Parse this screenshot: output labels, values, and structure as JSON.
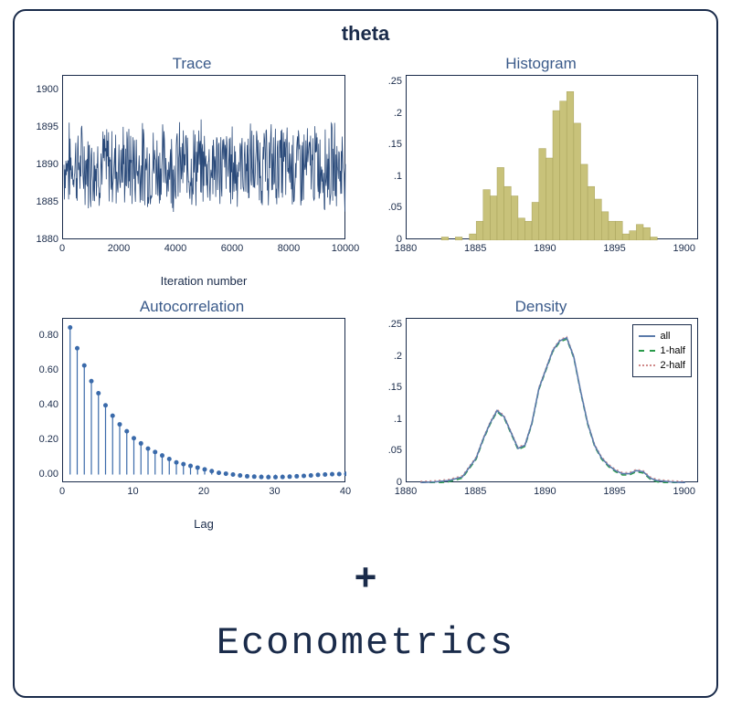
{
  "main_title": "theta",
  "plus_symbol": "+",
  "bottom_label": "Econometrics",
  "frame": {
    "border_color": "#1a2b4a",
    "border_radius": 14
  },
  "colors": {
    "text": "#1a2b4a",
    "subtitle": "#3a5a8a",
    "trace_line": "#2a4a7a",
    "hist_bar": "#c8c27a",
    "hist_bar_border": "#a8a25a",
    "acf_color": "#3a6aaa",
    "density_all": "#5a7aaa",
    "density_half1": "#2a9a4a",
    "density_half2": "#d08a8a"
  },
  "trace": {
    "title": "Trace",
    "xlabel": "Iteration number",
    "xlim": [
      0,
      10000
    ],
    "ylim": [
      1880,
      1902
    ],
    "xticks": [
      0,
      2000,
      4000,
      6000,
      8000,
      10000
    ],
    "yticks": [
      1880,
      1885,
      1890,
      1895,
      1900
    ],
    "mean": 1890,
    "noise_amp": 5
  },
  "histogram": {
    "title": "Histogram",
    "xlim": [
      1880,
      1901
    ],
    "ylim": [
      0,
      0.26
    ],
    "xticks": [
      1880,
      1885,
      1890,
      1895,
      1900
    ],
    "yticks": [
      0,
      0.05,
      0.1,
      0.15,
      0.2,
      0.25
    ],
    "ytick_labels": [
      "0",
      ".05",
      ".1",
      ".15",
      ".2",
      ".25"
    ],
    "bins": [
      {
        "x": 1882.5,
        "h": 0.005
      },
      {
        "x": 1883.5,
        "h": 0.005
      },
      {
        "x": 1884.5,
        "h": 0.01
      },
      {
        "x": 1885,
        "h": 0.03
      },
      {
        "x": 1885.5,
        "h": 0.08
      },
      {
        "x": 1886,
        "h": 0.07
      },
      {
        "x": 1886.5,
        "h": 0.115
      },
      {
        "x": 1887,
        "h": 0.085
      },
      {
        "x": 1887.5,
        "h": 0.07
      },
      {
        "x": 1888,
        "h": 0.035
      },
      {
        "x": 1888.5,
        "h": 0.03
      },
      {
        "x": 1889,
        "h": 0.06
      },
      {
        "x": 1889.5,
        "h": 0.145
      },
      {
        "x": 1890,
        "h": 0.13
      },
      {
        "x": 1890.5,
        "h": 0.205
      },
      {
        "x": 1891,
        "h": 0.22
      },
      {
        "x": 1891.5,
        "h": 0.235
      },
      {
        "x": 1892,
        "h": 0.185
      },
      {
        "x": 1892.5,
        "h": 0.12
      },
      {
        "x": 1893,
        "h": 0.085
      },
      {
        "x": 1893.5,
        "h": 0.065
      },
      {
        "x": 1894,
        "h": 0.045
      },
      {
        "x": 1894.5,
        "h": 0.03
      },
      {
        "x": 1895,
        "h": 0.03
      },
      {
        "x": 1895.5,
        "h": 0.01
      },
      {
        "x": 1896,
        "h": 0.015
      },
      {
        "x": 1896.5,
        "h": 0.025
      },
      {
        "x": 1897,
        "h": 0.02
      },
      {
        "x": 1897.5,
        "h": 0.005
      }
    ],
    "bin_width": 0.5
  },
  "acf": {
    "title": "Autocorrelation",
    "xlabel": "Lag",
    "xlim": [
      0,
      40
    ],
    "ylim": [
      -0.05,
      0.9
    ],
    "xticks": [
      0,
      10,
      20,
      30,
      40
    ],
    "yticks": [
      0,
      0.2,
      0.4,
      0.6,
      0.8
    ],
    "ytick_labels": [
      "0.00",
      "0.20",
      "0.40",
      "0.60",
      "0.80"
    ],
    "values": [
      0.85,
      0.73,
      0.63,
      0.54,
      0.47,
      0.4,
      0.34,
      0.29,
      0.25,
      0.21,
      0.18,
      0.15,
      0.13,
      0.11,
      0.09,
      0.07,
      0.06,
      0.05,
      0.04,
      0.03,
      0.02,
      0.01,
      0.005,
      0.0,
      -0.005,
      -0.01,
      -0.012,
      -0.014,
      -0.015,
      -0.015,
      -0.014,
      -0.012,
      -0.01,
      -0.008,
      -0.005,
      -0.002,
      0.0,
      0.002,
      0.003,
      0.004
    ],
    "marker_radius": 2.5
  },
  "density": {
    "title": "Density",
    "xlim": [
      1880,
      1901
    ],
    "ylim": [
      0,
      0.26
    ],
    "xticks": [
      1880,
      1885,
      1890,
      1895,
      1900
    ],
    "yticks": [
      0,
      0.05,
      0.1,
      0.15,
      0.2,
      0.25
    ],
    "ytick_labels": [
      "0",
      ".05",
      ".1",
      ".15",
      ".2",
      ".25"
    ],
    "legend": [
      "all",
      "1-half",
      "2-half"
    ],
    "curve_all": [
      [
        1881,
        0.001
      ],
      [
        1882,
        0.002
      ],
      [
        1883,
        0.004
      ],
      [
        1884,
        0.01
      ],
      [
        1885,
        0.04
      ],
      [
        1885.5,
        0.07
      ],
      [
        1886,
        0.095
      ],
      [
        1886.5,
        0.115
      ],
      [
        1887,
        0.105
      ],
      [
        1887.5,
        0.08
      ],
      [
        1888,
        0.055
      ],
      [
        1888.5,
        0.06
      ],
      [
        1889,
        0.095
      ],
      [
        1889.5,
        0.15
      ],
      [
        1890,
        0.18
      ],
      [
        1890.5,
        0.21
      ],
      [
        1891,
        0.225
      ],
      [
        1891.5,
        0.23
      ],
      [
        1892,
        0.2
      ],
      [
        1892.5,
        0.145
      ],
      [
        1893,
        0.095
      ],
      [
        1893.5,
        0.06
      ],
      [
        1894,
        0.04
      ],
      [
        1894.5,
        0.028
      ],
      [
        1895,
        0.02
      ],
      [
        1895.5,
        0.015
      ],
      [
        1896,
        0.015
      ],
      [
        1896.5,
        0.02
      ],
      [
        1897,
        0.018
      ],
      [
        1897.5,
        0.008
      ],
      [
        1898,
        0.004
      ],
      [
        1899,
        0.002
      ],
      [
        1900,
        0.001
      ]
    ]
  }
}
